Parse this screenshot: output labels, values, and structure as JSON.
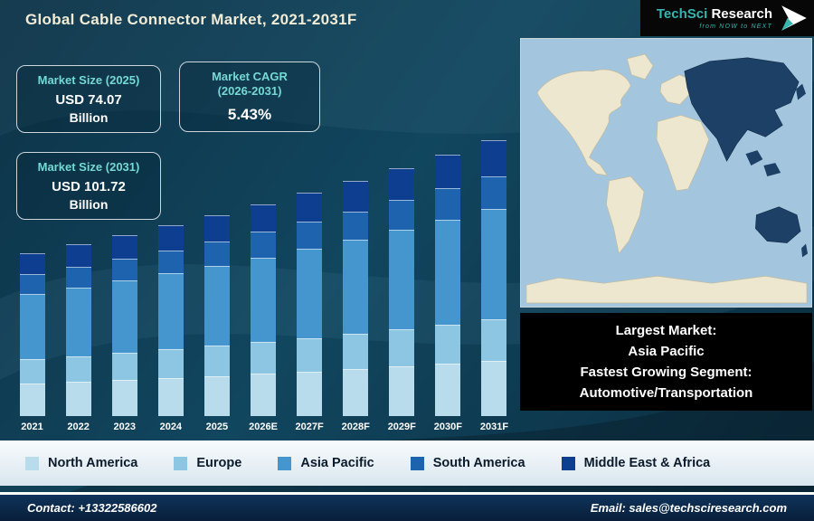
{
  "page": {
    "title": "Global Cable Connector Market, 2021-2031F"
  },
  "logo": {
    "brand": "TechSci",
    "brand2": "Research",
    "tagline": "from NOW to NEXT"
  },
  "stats": [
    {
      "label": "Market Size (2025)",
      "value": "USD 74.07",
      "unit": "Billion"
    },
    {
      "label": "Market CAGR",
      "sublabel": "(2026-2031)",
      "value": "5.43%"
    },
    {
      "label": "Market Size (2031)",
      "value": "USD 101.72",
      "unit": "Billion"
    }
  ],
  "chart_data": {
    "type": "bar",
    "stacked": true,
    "categories": [
      "2021",
      "2022",
      "2023",
      "2024",
      "2025",
      "2026E",
      "2027F",
      "2028F",
      "2029F",
      "2030F",
      "2031F"
    ],
    "series": [
      {
        "name": "North America",
        "color": "#b9dcec",
        "values": [
          12.0,
          12.6,
          13.3,
          14.1,
          14.8,
          15.6,
          16.5,
          17.4,
          18.3,
          19.3,
          20.3
        ]
      },
      {
        "name": "Europe",
        "color": "#8cc6e2",
        "values": [
          9.0,
          9.5,
          10.0,
          10.5,
          11.1,
          11.7,
          12.3,
          13.0,
          13.7,
          14.5,
          15.3
        ]
      },
      {
        "name": "Asia Pacific",
        "color": "#4595cf",
        "values": [
          24.0,
          25.3,
          26.7,
          28.1,
          29.6,
          31.2,
          32.9,
          34.7,
          36.6,
          38.6,
          40.7
        ]
      },
      {
        "name": "South America",
        "color": "#1d63ad",
        "values": [
          7.2,
          7.6,
          8.0,
          8.4,
          8.9,
          9.4,
          9.9,
          10.4,
          11.0,
          11.6,
          12.2
        ]
      },
      {
        "name": "Middle East & Africa",
        "color": "#0d3e8f",
        "values": [
          7.8,
          8.2,
          8.7,
          9.1,
          9.7,
          10.2,
          10.7,
          11.3,
          11.9,
          12.5,
          13.2
        ]
      }
    ],
    "totals": [
      60.0,
      63.2,
      66.7,
      70.3,
      74.07,
      78.1,
      82.3,
      86.8,
      91.5,
      96.5,
      101.72
    ],
    "title": "Global Cable Connector Market, 2021-2031F",
    "xlabel": "",
    "ylabel": "",
    "units": "USD Billion",
    "ylim": [
      0,
      110
    ],
    "value_axis_visible": false,
    "legend_position": "bottom"
  },
  "map": {
    "highlighted_region": "Asia Pacific",
    "ocean_color": "#a3c6de",
    "land_color": "#ede7cf",
    "highlight_color": "#1d4066"
  },
  "callout": {
    "lines": [
      "Largest Market:",
      "Asia Pacific",
      "Fastest Growing Segment:",
      "Automotive/Transportation"
    ]
  },
  "footer": {
    "contact": "Contact: +13322586602",
    "email": "Email: sales@techsciresearch.com"
  }
}
